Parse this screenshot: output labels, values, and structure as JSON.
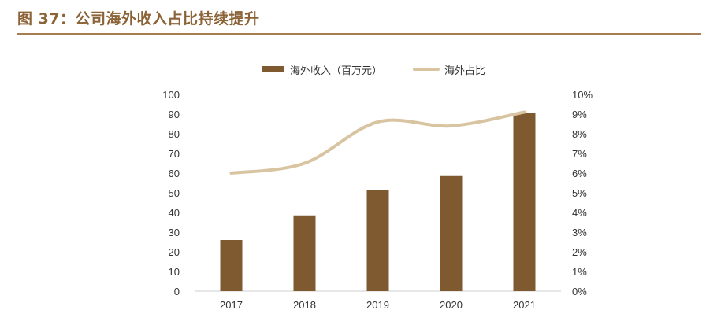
{
  "page": {
    "title": "图 37：公司海外收入占比持续提升"
  },
  "chart_data": {
    "type": "bar",
    "categories": [
      "2017",
      "2018",
      "2019",
      "2020",
      "2021"
    ],
    "series": [
      {
        "name": "海外收入（百万元）",
        "kind": "bar",
        "axis": "left",
        "values": [
          26,
          38.5,
          51.5,
          58.5,
          90.5
        ],
        "color": "#7F5A30"
      },
      {
        "name": "海外占比",
        "kind": "line",
        "axis": "right",
        "values": [
          6.0,
          6.5,
          8.6,
          8.4,
          9.1
        ],
        "color": "#D8C4A0"
      }
    ],
    "left_axis": {
      "min": 0,
      "max": 100,
      "step": 10,
      "ticks": [
        "0",
        "10",
        "20",
        "30",
        "40",
        "50",
        "60",
        "70",
        "80",
        "90",
        "100"
      ]
    },
    "right_axis": {
      "min": 0,
      "max": 10,
      "step": 1,
      "ticks": [
        "0%",
        "1%",
        "2%",
        "3%",
        "4%",
        "5%",
        "6%",
        "7%",
        "8%",
        "9%",
        "10%"
      ]
    },
    "grid": false,
    "legend": "top-center",
    "title_color": "#8B6337",
    "rule_color": "#A67C52"
  }
}
